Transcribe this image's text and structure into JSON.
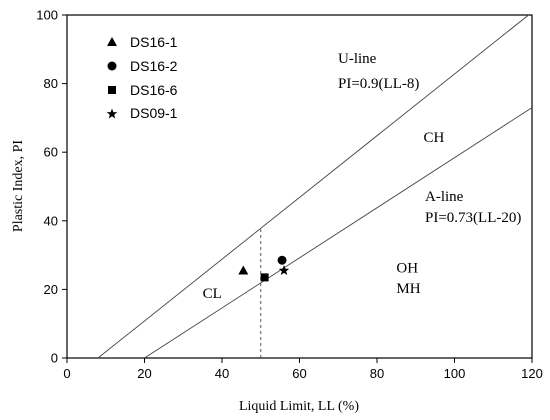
{
  "chart_data": {
    "type": "scatter",
    "xlabel": "Liquid Limit, LL (%)",
    "ylabel": "Plastic Index, PI",
    "xlim": [
      0,
      120
    ],
    "ylim": [
      0,
      100
    ],
    "xticks": [
      0,
      20,
      40,
      60,
      80,
      100,
      120
    ],
    "yticks": [
      0,
      20,
      40,
      60,
      80,
      100
    ],
    "legend_position": "top-left",
    "series": [
      {
        "name": "DS16-1",
        "marker": "triangle",
        "x": 45.5,
        "y": 25.5
      },
      {
        "name": "DS16-2",
        "marker": "circle",
        "x": 55.5,
        "y": 28.5
      },
      {
        "name": "DS16-6",
        "marker": "square",
        "x": 51,
        "y": 23.5
      },
      {
        "name": "DS09-1",
        "marker": "star",
        "x": 56,
        "y": 25.5
      }
    ],
    "reference_lines": [
      {
        "label": "U-line",
        "equation": "PI=0.9(LL-8)",
        "slope": 0.9,
        "intercept_ll": 8
      },
      {
        "label": "A-line",
        "equation": "PI=0.73(LL-20)",
        "slope": 0.73,
        "intercept_ll": 20
      }
    ],
    "vertical_line": {
      "x": 50,
      "y_to": 37.5
    },
    "annotations": [
      {
        "text": "CH",
        "x": 92,
        "y": 63
      },
      {
        "text": "CL",
        "x": 35,
        "y": 17.5
      },
      {
        "text": "OH",
        "x": 85,
        "y": 25
      },
      {
        "text": "MH",
        "x": 85,
        "y": 19
      }
    ]
  }
}
